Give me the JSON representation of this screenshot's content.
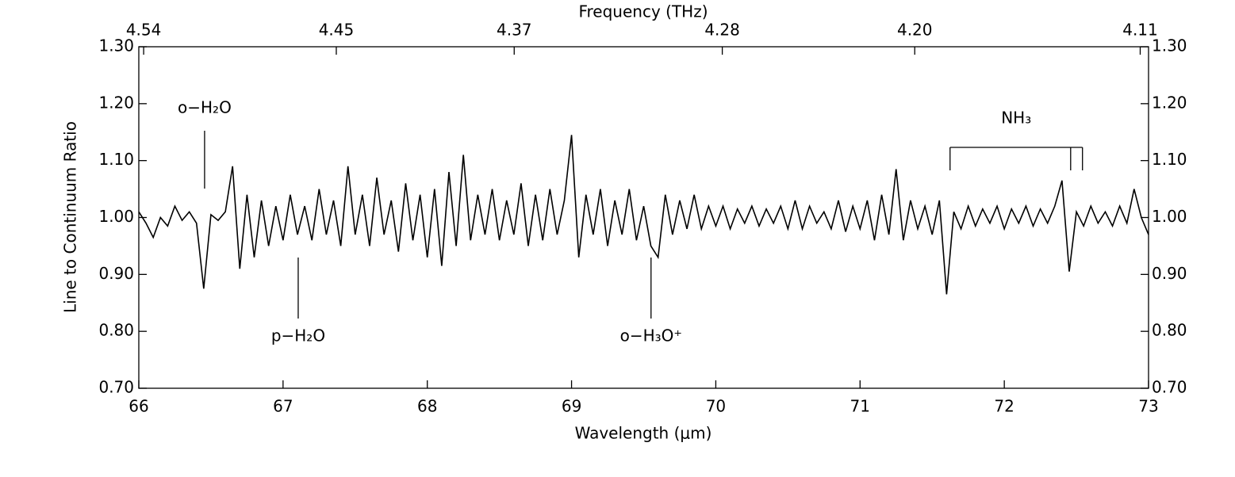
{
  "chart_data": {
    "type": "line",
    "x_label": "Wavelength (μm)",
    "x2_label": "Frequency (THz)",
    "y_label": "Line to Continuum Ratio",
    "xlim": [
      66,
      73
    ],
    "ylim": [
      0.7,
      1.3
    ],
    "xticks": [
      66,
      67,
      68,
      69,
      70,
      71,
      72,
      73
    ],
    "x2ticks": [
      4.54,
      4.45,
      4.37,
      4.28,
      {
        "value": 4.2,
        "label": "4.20"
      },
      4.11
    ],
    "yticks": [
      {
        "value": 0.7,
        "label": "0.70"
      },
      {
        "value": 0.8,
        "label": "0.80"
      },
      {
        "value": 0.9,
        "label": "0.90"
      },
      {
        "value": 1.0,
        "label": "1.00"
      },
      {
        "value": 1.1,
        "label": "1.10"
      },
      {
        "value": 1.2,
        "label": "1.20"
      },
      {
        "value": 1.3,
        "label": "1.30"
      }
    ],
    "series": [
      {
        "color": "#000000",
        "x": [
          66.0,
          66.05,
          66.1,
          66.15,
          66.2,
          66.25,
          66.3,
          66.35,
          66.4,
          66.45,
          66.5,
          66.55,
          66.6,
          66.65,
          66.7,
          66.75,
          66.8,
          66.85,
          66.9,
          66.95,
          67.0,
          67.05,
          67.1,
          67.15,
          67.2,
          67.25,
          67.3,
          67.35,
          67.4,
          67.45,
          67.5,
          67.55,
          67.6,
          67.65,
          67.7,
          67.75,
          67.8,
          67.85,
          67.9,
          67.95,
          68.0,
          68.05,
          68.1,
          68.15,
          68.2,
          68.25,
          68.3,
          68.35,
          68.4,
          68.45,
          68.5,
          68.55,
          68.6,
          68.65,
          68.7,
          68.75,
          68.8,
          68.85,
          68.9,
          68.95,
          69.0,
          69.05,
          69.1,
          69.15,
          69.2,
          69.25,
          69.3,
          69.35,
          69.4,
          69.45,
          69.5,
          69.55,
          69.6,
          69.65,
          69.7,
          69.75,
          69.8,
          69.85,
          69.9,
          69.95,
          70.0,
          70.05,
          70.1,
          70.15,
          70.2,
          70.25,
          70.3,
          70.35,
          70.4,
          70.45,
          70.5,
          70.55,
          70.6,
          70.65,
          70.7,
          70.75,
          70.8,
          70.85,
          70.9,
          70.95,
          71.0,
          71.05,
          71.1,
          71.15,
          71.2,
          71.25,
          71.3,
          71.35,
          71.4,
          71.45,
          71.5,
          71.55,
          71.6,
          71.65,
          71.7,
          71.75,
          71.8,
          71.85,
          71.9,
          71.95,
          72.0,
          72.05,
          72.1,
          72.15,
          72.2,
          72.25,
          72.3,
          72.35,
          72.4,
          72.45,
          72.5,
          72.55,
          72.6,
          72.65,
          72.7,
          72.75,
          72.8,
          72.85,
          72.9,
          72.95,
          73.0
        ],
        "values": [
          1.01,
          0.99,
          0.965,
          1.0,
          0.985,
          1.02,
          0.995,
          1.01,
          0.99,
          0.875,
          1.005,
          0.995,
          1.01,
          1.09,
          0.91,
          1.04,
          0.93,
          1.03,
          0.95,
          1.02,
          0.96,
          1.04,
          0.97,
          1.02,
          0.96,
          1.05,
          0.97,
          1.03,
          0.95,
          1.09,
          0.97,
          1.04,
          0.95,
          1.07,
          0.97,
          1.03,
          0.94,
          1.06,
          0.96,
          1.04,
          0.93,
          1.05,
          0.915,
          1.08,
          0.95,
          1.11,
          0.96,
          1.04,
          0.97,
          1.05,
          0.96,
          1.03,
          0.97,
          1.06,
          0.95,
          1.04,
          0.96,
          1.05,
          0.97,
          1.03,
          1.145,
          0.93,
          1.04,
          0.97,
          1.05,
          0.95,
          1.03,
          0.97,
          1.05,
          0.96,
          1.02,
          0.95,
          0.93,
          1.04,
          0.97,
          1.03,
          0.98,
          1.04,
          0.98,
          1.02,
          0.985,
          1.02,
          0.98,
          1.015,
          0.99,
          1.02,
          0.985,
          1.015,
          0.99,
          1.02,
          0.98,
          1.03,
          0.98,
          1.02,
          0.99,
          1.01,
          0.98,
          1.03,
          0.975,
          1.02,
          0.98,
          1.03,
          0.96,
          1.04,
          0.97,
          1.085,
          0.96,
          1.03,
          0.98,
          1.02,
          0.97,
          1.03,
          0.865,
          1.01,
          0.98,
          1.02,
          0.985,
          1.015,
          0.99,
          1.02,
          0.98,
          1.015,
          0.99,
          1.02,
          0.985,
          1.015,
          0.99,
          1.02,
          1.065,
          0.905,
          1.01,
          0.985,
          1.02,
          0.99,
          1.01,
          0.985,
          1.02,
          0.99,
          1.05,
          1.0,
          0.97
        ]
      }
    ],
    "annotations": [
      {
        "label": "o−H₂O",
        "x": 66.456
      },
      {
        "label": "p−H₂O",
        "x": 67.105
      },
      {
        "label": "o−H₃O⁺",
        "x": 69.551
      },
      {
        "label": "NH₃",
        "x": [
          71.624,
          72.46,
          72.542
        ]
      }
    ]
  }
}
